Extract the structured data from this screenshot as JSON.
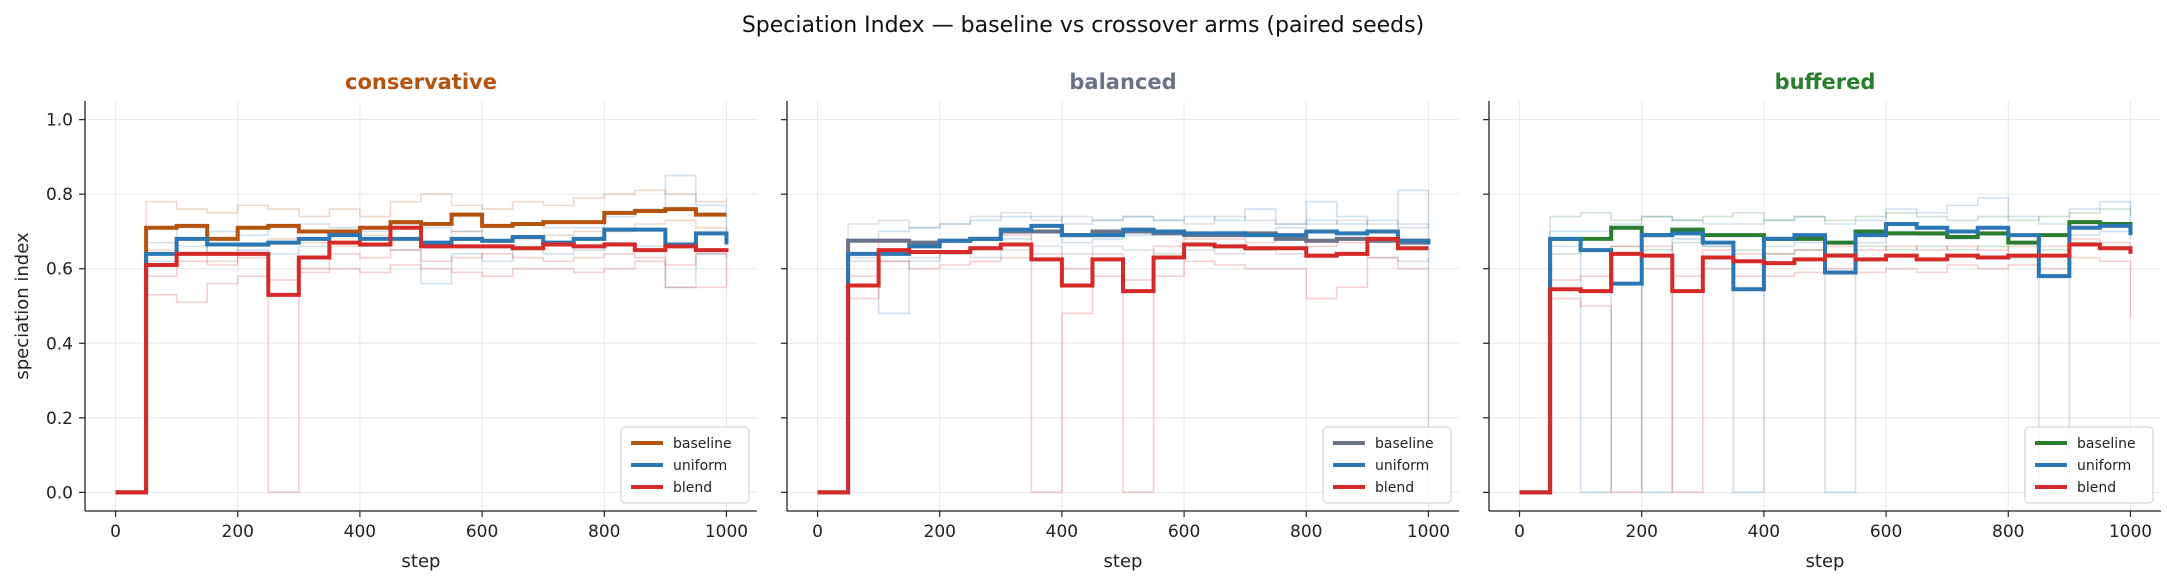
{
  "figure": {
    "title": "Speciation Index — baseline vs crossover arms (paired seeds)"
  },
  "colors": {
    "uniform": "#2a77b4",
    "blend": "#d62a28",
    "grid": "#e8e8e8"
  },
  "chart_data": [
    {
      "type": "line",
      "title": "conservative",
      "title_color": "#b5530f",
      "xlabel": "step",
      "ylabel": "speciation index",
      "xlim": [
        -50,
        1050
      ],
      "ylim": [
        -0.05,
        1.05
      ],
      "xticks": [
        0,
        200,
        400,
        600,
        800,
        1000
      ],
      "yticks": [
        0.0,
        0.2,
        0.4,
        0.6,
        0.8,
        1.0
      ],
      "ytick_labels": [
        "0.0",
        "0.2",
        "0.4",
        "0.6",
        "0.8",
        "1.0"
      ],
      "grid": true,
      "legend": "lower-right",
      "x": [
        0,
        50,
        100,
        150,
        200,
        250,
        300,
        350,
        400,
        450,
        500,
        550,
        600,
        650,
        700,
        750,
        800,
        850,
        900,
        950,
        1000
      ],
      "series": [
        {
          "name": "baseline",
          "color": "#b5530f",
          "values": [
            0.0,
            0.71,
            0.715,
            0.68,
            0.71,
            0.715,
            0.7,
            0.7,
            0.71,
            0.725,
            0.72,
            0.745,
            0.715,
            0.72,
            0.725,
            0.725,
            0.75,
            0.755,
            0.76,
            0.745,
            0.745
          ]
        },
        {
          "name": "uniform",
          "color": "#2a77b4",
          "values": [
            0.0,
            0.64,
            0.68,
            0.665,
            0.665,
            0.67,
            0.68,
            0.69,
            0.68,
            0.68,
            0.67,
            0.68,
            0.675,
            0.685,
            0.67,
            0.68,
            0.705,
            0.705,
            0.665,
            0.695,
            0.665
          ]
        },
        {
          "name": "blend",
          "color": "#d62a28",
          "values": [
            0.0,
            0.61,
            0.64,
            0.64,
            0.64,
            0.53,
            0.63,
            0.67,
            0.665,
            0.71,
            0.66,
            0.66,
            0.66,
            0.655,
            0.665,
            0.66,
            0.665,
            0.65,
            0.66,
            0.65,
            0.655
          ]
        }
      ],
      "seed_traces": [
        {
          "color": "#b5530f",
          "values": [
            0.0,
            0.78,
            0.76,
            0.75,
            0.77,
            0.76,
            0.74,
            0.76,
            0.74,
            0.78,
            0.8,
            0.77,
            0.76,
            0.78,
            0.77,
            0.79,
            0.8,
            0.81,
            0.8,
            0.78,
            0.79
          ]
        },
        {
          "color": "#b5530f",
          "values": [
            0.0,
            0.65,
            0.68,
            0.62,
            0.66,
            0.68,
            0.67,
            0.66,
            0.69,
            0.68,
            0.66,
            0.7,
            0.67,
            0.68,
            0.69,
            0.7,
            0.7,
            0.72,
            0.73,
            0.71,
            0.7
          ]
        },
        {
          "color": "#2a77b4",
          "values": [
            0.0,
            0.62,
            0.66,
            0.64,
            0.65,
            0.64,
            0.66,
            0.67,
            0.66,
            0.65,
            0.56,
            0.64,
            0.62,
            0.66,
            0.64,
            0.65,
            0.67,
            0.66,
            0.55,
            0.64,
            0.62
          ]
        },
        {
          "color": "#2a77b4",
          "values": [
            0.0,
            0.67,
            0.71,
            0.7,
            0.69,
            0.71,
            0.72,
            0.71,
            0.7,
            0.72,
            0.71,
            0.7,
            0.71,
            0.72,
            0.71,
            0.71,
            0.74,
            0.76,
            0.85,
            0.77,
            0.7
          ]
        },
        {
          "color": "#d62a28",
          "values": [
            0.0,
            0.58,
            0.62,
            0.61,
            0.63,
            0.0,
            0.6,
            0.64,
            0.63,
            0.65,
            0.62,
            0.63,
            0.64,
            0.63,
            0.62,
            0.63,
            0.64,
            0.63,
            0.61,
            0.64,
            0.63
          ]
        },
        {
          "color": "#d62a28",
          "values": [
            0.0,
            0.53,
            0.51,
            0.56,
            0.58,
            0.57,
            0.59,
            0.6,
            0.59,
            0.61,
            0.6,
            0.59,
            0.58,
            0.6,
            0.6,
            0.59,
            0.6,
            0.62,
            0.55,
            0.55,
            0.62
          ]
        }
      ]
    },
    {
      "type": "line",
      "title": "balanced",
      "title_color": "#6a7387",
      "xlabel": "step",
      "ylabel": "",
      "xlim": [
        -50,
        1050
      ],
      "ylim": [
        -0.05,
        1.05
      ],
      "xticks": [
        0,
        200,
        400,
        600,
        800,
        1000
      ],
      "yticks": [
        0.0,
        0.2,
        0.4,
        0.6,
        0.8,
        1.0
      ],
      "ytick_labels": [
        "",
        "",
        "",
        "",
        "",
        ""
      ],
      "grid": true,
      "legend": "lower-right",
      "x": [
        0,
        50,
        100,
        150,
        200,
        250,
        300,
        350,
        400,
        450,
        500,
        550,
        600,
        650,
        700,
        750,
        800,
        850,
        900,
        950,
        1000
      ],
      "series": [
        {
          "name": "baseline",
          "color": "#6a7387",
          "values": [
            0.0,
            0.675,
            0.675,
            0.67,
            0.675,
            0.68,
            0.7,
            0.7,
            0.69,
            0.7,
            0.7,
            0.695,
            0.69,
            0.69,
            0.695,
            0.68,
            0.675,
            0.68,
            0.675,
            0.67,
            0.67
          ]
        },
        {
          "name": "uniform",
          "color": "#2a77b4",
          "values": [
            0.0,
            0.64,
            0.64,
            0.66,
            0.675,
            0.68,
            0.705,
            0.715,
            0.69,
            0.69,
            0.705,
            0.7,
            0.695,
            0.695,
            0.69,
            0.69,
            0.7,
            0.695,
            0.7,
            0.675,
            0.665
          ]
        },
        {
          "name": "blend",
          "color": "#d62a28",
          "values": [
            0.0,
            0.555,
            0.65,
            0.645,
            0.645,
            0.655,
            0.665,
            0.625,
            0.555,
            0.625,
            0.54,
            0.63,
            0.665,
            0.66,
            0.655,
            0.655,
            0.635,
            0.64,
            0.68,
            0.655,
            0.655
          ]
        }
      ],
      "seed_traces": [
        {
          "color": "#6a7387",
          "values": [
            0.0,
            0.72,
            0.73,
            0.71,
            0.72,
            0.74,
            0.75,
            0.73,
            0.74,
            0.73,
            0.74,
            0.73,
            0.72,
            0.74,
            0.73,
            0.72,
            0.72,
            0.73,
            0.72,
            0.71,
            0.72
          ]
        },
        {
          "color": "#6a7387",
          "values": [
            0.0,
            0.63,
            0.62,
            0.63,
            0.64,
            0.63,
            0.65,
            0.66,
            0.64,
            0.66,
            0.65,
            0.64,
            0.65,
            0.64,
            0.65,
            0.64,
            0.63,
            0.64,
            0.63,
            0.62,
            0.63
          ]
        },
        {
          "color": "#2a77b4",
          "values": [
            0.0,
            0.62,
            0.48,
            0.62,
            0.64,
            0.66,
            0.68,
            0.7,
            0.67,
            0.68,
            0.69,
            0.7,
            0.69,
            0.7,
            0.69,
            0.71,
            0.78,
            0.74,
            0.7,
            0.81,
            0.0
          ]
        },
        {
          "color": "#2a77b4",
          "values": [
            0.0,
            0.68,
            0.7,
            0.71,
            0.72,
            0.73,
            0.74,
            0.74,
            0.72,
            0.73,
            0.74,
            0.73,
            0.74,
            0.73,
            0.76,
            0.72,
            0.73,
            0.72,
            0.73,
            0.72,
            0.72
          ]
        },
        {
          "color": "#d62a28",
          "values": [
            0.0,
            0.52,
            0.62,
            0.6,
            0.61,
            0.62,
            0.63,
            0.0,
            0.48,
            0.58,
            0.0,
            0.58,
            0.62,
            0.61,
            0.6,
            0.6,
            0.52,
            0.55,
            0.63,
            0.6,
            0.6
          ]
        },
        {
          "color": "#d62a28",
          "values": [
            0.0,
            0.58,
            0.68,
            0.66,
            0.67,
            0.68,
            0.69,
            0.64,
            0.6,
            0.64,
            0.57,
            0.66,
            0.68,
            0.68,
            0.67,
            0.68,
            0.66,
            0.67,
            0.7,
            0.68,
            0.68
          ]
        }
      ]
    },
    {
      "type": "line",
      "title": "buffered",
      "title_color": "#2a7d2e",
      "xlabel": "step",
      "ylabel": "",
      "xlim": [
        -50,
        1050
      ],
      "ylim": [
        -0.05,
        1.05
      ],
      "xticks": [
        0,
        200,
        400,
        600,
        800,
        1000
      ],
      "yticks": [
        0.0,
        0.2,
        0.4,
        0.6,
        0.8,
        1.0
      ],
      "ytick_labels": [
        "",
        "",
        "",
        "",
        "",
        ""
      ],
      "grid": true,
      "legend": "lower-right",
      "x": [
        0,
        50,
        100,
        150,
        200,
        250,
        300,
        350,
        400,
        450,
        500,
        550,
        600,
        650,
        700,
        750,
        800,
        850,
        900,
        950,
        1000
      ],
      "series": [
        {
          "name": "baseline",
          "color": "#2a7d2e",
          "values": [
            0.0,
            0.68,
            0.68,
            0.71,
            0.69,
            0.705,
            0.69,
            0.69,
            0.68,
            0.68,
            0.67,
            0.7,
            0.695,
            0.695,
            0.685,
            0.695,
            0.67,
            0.69,
            0.725,
            0.72,
            0.71
          ]
        },
        {
          "name": "uniform",
          "color": "#2a77b4",
          "values": [
            0.0,
            0.68,
            0.65,
            0.56,
            0.69,
            0.695,
            0.67,
            0.545,
            0.68,
            0.69,
            0.59,
            0.69,
            0.72,
            0.71,
            0.7,
            0.71,
            0.69,
            0.58,
            0.71,
            0.715,
            0.69
          ]
        },
        {
          "name": "blend",
          "color": "#d62a28",
          "values": [
            0.0,
            0.545,
            0.54,
            0.64,
            0.635,
            0.54,
            0.63,
            0.62,
            0.615,
            0.625,
            0.635,
            0.625,
            0.635,
            0.625,
            0.635,
            0.63,
            0.635,
            0.635,
            0.665,
            0.655,
            0.64
          ]
        }
      ],
      "seed_traces": [
        {
          "color": "#2a7d2e",
          "values": [
            0.0,
            0.74,
            0.75,
            0.73,
            0.74,
            0.73,
            0.74,
            0.75,
            0.73,
            0.74,
            0.73,
            0.74,
            0.75,
            0.74,
            0.73,
            0.74,
            0.73,
            0.74,
            0.75,
            0.76,
            0.74
          ]
        },
        {
          "color": "#2a7d2e",
          "values": [
            0.0,
            0.64,
            0.65,
            0.66,
            0.65,
            0.67,
            0.66,
            0.65,
            0.64,
            0.65,
            0.64,
            0.66,
            0.65,
            0.66,
            0.65,
            0.66,
            0.63,
            0.65,
            0.67,
            0.66,
            0.65
          ]
        },
        {
          "color": "#2a77b4",
          "values": [
            0.0,
            0.66,
            0.0,
            0.64,
            0.0,
            0.68,
            0.66,
            0.0,
            0.66,
            0.67,
            0.0,
            0.67,
            0.7,
            0.69,
            0.68,
            0.69,
            0.67,
            0.0,
            0.69,
            0.7,
            0.68
          ]
        },
        {
          "color": "#2a77b4",
          "values": [
            0.0,
            0.7,
            0.7,
            0.72,
            0.74,
            0.73,
            0.72,
            0.72,
            0.73,
            0.74,
            0.72,
            0.73,
            0.76,
            0.75,
            0.77,
            0.79,
            0.74,
            0.72,
            0.76,
            0.78,
            0.72
          ]
        },
        {
          "color": "#d62a28",
          "values": [
            0.0,
            0.52,
            0.5,
            0.0,
            0.6,
            0.0,
            0.6,
            0.58,
            0.58,
            0.59,
            0.6,
            0.59,
            0.6,
            0.59,
            0.61,
            0.6,
            0.61,
            0.6,
            0.63,
            0.62,
            0.47
          ]
        },
        {
          "color": "#d62a28",
          "values": [
            0.0,
            0.57,
            0.58,
            0.66,
            0.66,
            0.58,
            0.65,
            0.64,
            0.64,
            0.65,
            0.66,
            0.65,
            0.66,
            0.65,
            0.66,
            0.65,
            0.66,
            0.66,
            0.68,
            0.67,
            0.66
          ]
        }
      ]
    }
  ]
}
